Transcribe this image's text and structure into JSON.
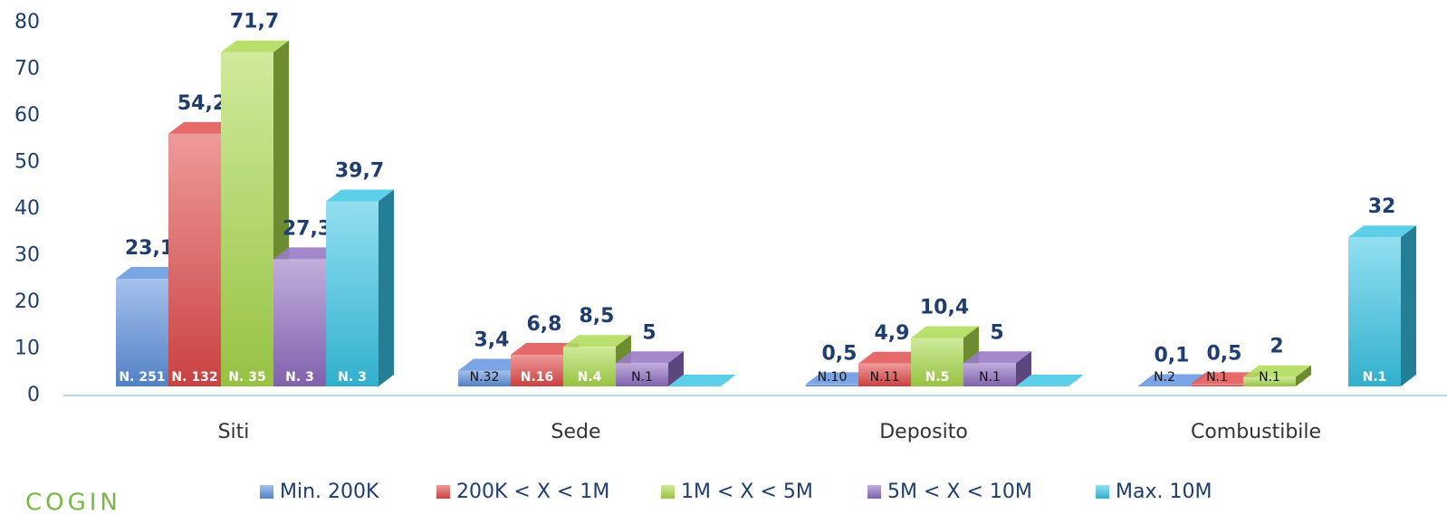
{
  "chart_data": {
    "type": "bar3d",
    "categories": [
      "Siti",
      "Sede",
      "Deposito",
      "Combustibile"
    ],
    "ylim": [
      0,
      80
    ],
    "yticks": [
      0,
      10,
      20,
      30,
      40,
      50,
      60,
      70,
      80
    ],
    "legend": "bottom",
    "brand": "COGIN",
    "series": [
      {
        "name": "Min. 200K",
        "color": "#5b8fdc",
        "values": [
          23.1,
          3.4,
          0.5,
          0.1
        ],
        "value_labels": [
          "23,1",
          "3,4",
          "0,5",
          "0,1"
        ],
        "count_labels": [
          "N. 251",
          "N.32",
          "N.10",
          "N.2"
        ]
      },
      {
        "name": "200K < X < 1M",
        "color": "#e04848",
        "values": [
          54.2,
          6.8,
          4.9,
          0.5
        ],
        "value_labels": [
          "54,2",
          "6,8",
          "4,9",
          "0,5"
        ],
        "count_labels": [
          "N. 132",
          "N.16",
          "N.11",
          "N.1"
        ]
      },
      {
        "name": "1M < X < 5M",
        "color": "#a8d84a",
        "values": [
          71.7,
          8.5,
          10.4,
          2
        ],
        "value_labels": [
          "71,7",
          "8,5",
          "10,4",
          "2"
        ],
        "count_labels": [
          "N. 35",
          "N.4",
          "N.5",
          "N.1"
        ]
      },
      {
        "name": "5M < X < 10M",
        "color": "#8e6cc0",
        "values": [
          27.3,
          5,
          5,
          null
        ],
        "value_labels": [
          "27,3",
          "5",
          "5",
          null
        ],
        "count_labels": [
          "N. 3",
          "N.1",
          "N.1",
          null
        ]
      },
      {
        "name": "Max. 10M",
        "color": "#38c4e4",
        "values": [
          39.7,
          0,
          0,
          32
        ],
        "value_labels": [
          "39,7",
          null,
          null,
          "32"
        ],
        "count_labels": [
          "N. 3",
          null,
          null,
          "N.1"
        ]
      }
    ]
  }
}
